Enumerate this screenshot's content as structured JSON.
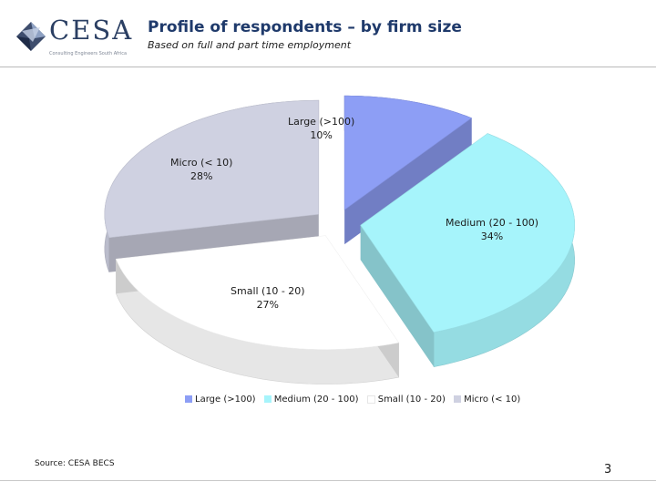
{
  "header": {
    "logo_text": "CESA",
    "logo_tagline": "Consulting Engineers South Africa",
    "title": "Profile of respondents – by firm size",
    "subtitle": "Based on full and part time employment"
  },
  "chart_data": {
    "type": "pie",
    "title": "",
    "categories": [
      "Large (>100)",
      "Medium (20 - 100)",
      "Small (10 - 20)",
      "Micro (< 10)"
    ],
    "values": [
      10,
      34,
      27,
      28
    ],
    "value_labels": [
      "10%",
      "34%",
      "27%",
      "28%"
    ],
    "colors": [
      "#8d9ef5",
      "#a6f4fb",
      "#ffffff",
      "#cfd1e1"
    ],
    "legend_position": "bottom",
    "exploded": true,
    "three_d": true
  },
  "footer": {
    "source": "Source: CESA BECS",
    "page_number": "3"
  }
}
